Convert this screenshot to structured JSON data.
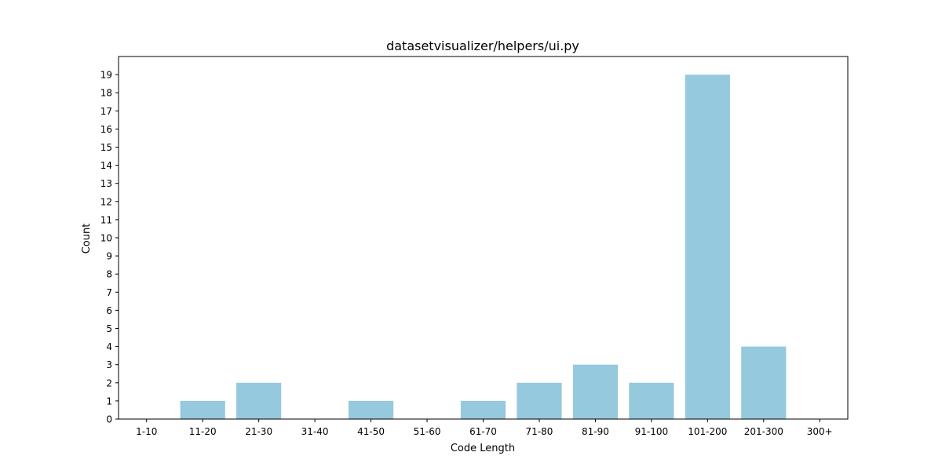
{
  "chart_data": {
    "type": "bar",
    "title": "datasetvisualizer/helpers/ui.py",
    "xlabel": "Code Length",
    "ylabel": "Count",
    "categories": [
      "1-10",
      "11-20",
      "21-30",
      "31-40",
      "41-50",
      "51-60",
      "61-70",
      "71-80",
      "81-90",
      "91-100",
      "101-200",
      "201-300",
      "300+"
    ],
    "values": [
      0,
      1,
      2,
      0,
      1,
      0,
      1,
      2,
      3,
      2,
      19,
      4,
      0
    ],
    "ylim": [
      0,
      20
    ],
    "yticks": [
      0,
      1,
      2,
      3,
      4,
      5,
      6,
      7,
      8,
      9,
      10,
      11,
      12,
      13,
      14,
      15,
      16,
      17,
      18,
      19
    ],
    "grid": false,
    "bar_color": "#95c9dd"
  }
}
